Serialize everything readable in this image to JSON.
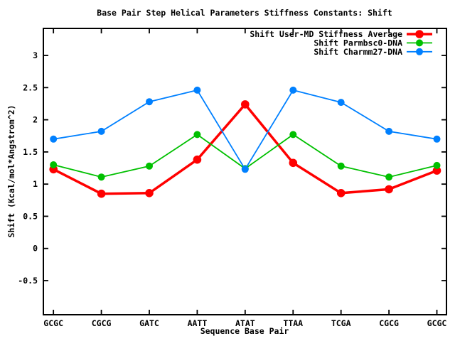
{
  "chart_data": {
    "type": "line",
    "title": "Base Pair Step Helical Parameters Stiffness Constants: Shift",
    "xlabel": "Sequence Base Pair",
    "ylabel": "Shift (Kcal/mol*Angstrom^2)",
    "categories": [
      "GCGC",
      "CGCG",
      "GATC",
      "AATT",
      "ATAT",
      "TTAA",
      "TCGA",
      "CGCG",
      "GCGC"
    ],
    "series": [
      {
        "name": "Shift User-MD Stiffness Average",
        "color": "#ff0000",
        "line_width": 3.5,
        "marker": "filled-circle",
        "marker_radius": 5.8,
        "values": [
          1.23,
          0.85,
          0.86,
          1.38,
          2.24,
          1.33,
          0.86,
          0.92,
          1.21
        ]
      },
      {
        "name": "Shift Parmbsc0-DNA",
        "color": "#00c000",
        "line_width": 1.8,
        "marker": "filled-circle",
        "marker_radius": 5,
        "values": [
          1.3,
          1.11,
          1.28,
          1.77,
          1.24,
          1.77,
          1.28,
          1.11,
          1.29
        ]
      },
      {
        "name": "Shift Charmm27-DNA",
        "color": "#0080ff",
        "line_width": 1.8,
        "marker": "filled-circle",
        "marker_radius": 5,
        "values": [
          1.7,
          1.82,
          2.28,
          2.46,
          1.23,
          2.46,
          2.27,
          1.82,
          1.7
        ]
      }
    ],
    "yticks": [
      {
        "value": 3,
        "label": "3"
      },
      {
        "value": 2.5,
        "label": "2.5"
      },
      {
        "value": 2,
        "label": "2"
      },
      {
        "value": 1.5,
        "label": "1.5"
      },
      {
        "value": 1,
        "label": "1"
      },
      {
        "value": 0.5,
        "label": "0.5"
      },
      {
        "value": 0,
        "label": "0"
      },
      {
        "value": -0.5,
        "label": "-0.5"
      }
    ],
    "xlim": [
      0.79,
      9.2
    ],
    "ylim": [
      -1.03,
      3.42
    ],
    "grid": false,
    "legend_position": "top-right-inside",
    "background_color": "#ffffff",
    "text_color": "#000000",
    "border_color": "#000000"
  }
}
